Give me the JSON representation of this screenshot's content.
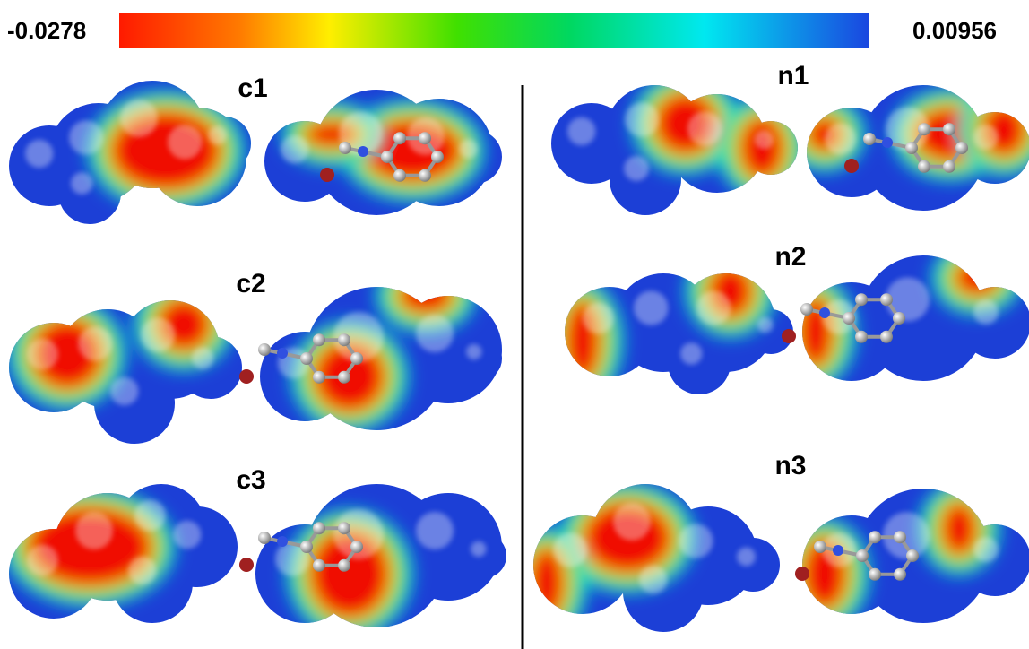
{
  "colorbar": {
    "min_label": "-0.0278",
    "max_label": "0.00956"
  },
  "panels": {
    "c1": "c1",
    "c2": "c2",
    "c3": "c3",
    "n1": "n1",
    "n2": "n2",
    "n3": "n3"
  }
}
